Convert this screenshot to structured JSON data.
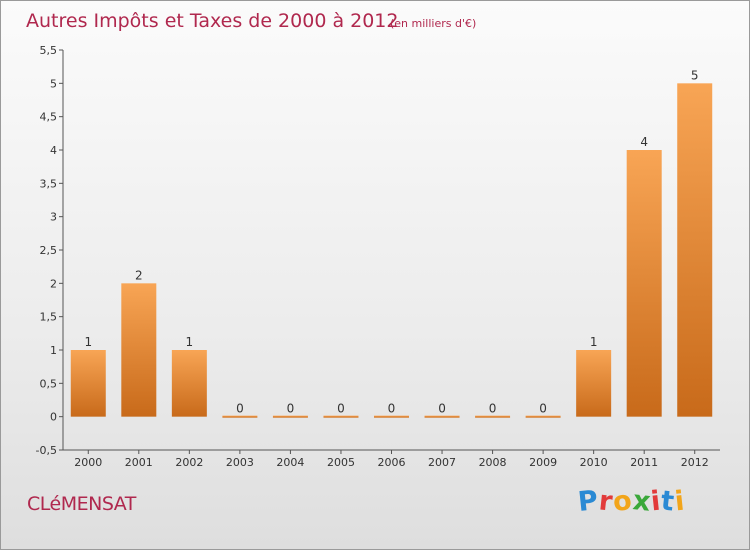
{
  "chart_data": {
    "type": "bar",
    "title": "Autres Impôts et Taxes de 2000 à 2012",
    "subtitle": "(en milliers d'€)",
    "categories": [
      "2000",
      "2001",
      "2002",
      "2003",
      "2004",
      "2005",
      "2006",
      "2007",
      "2008",
      "2009",
      "2010",
      "2011",
      "2012"
    ],
    "values": [
      1,
      2,
      1,
      0,
      0,
      0,
      0,
      0,
      0,
      0,
      1,
      4,
      5
    ],
    "data_labels": [
      "1",
      "2",
      "1",
      "0",
      "0",
      "0",
      "0",
      "0",
      "0",
      "0",
      "1",
      "4",
      "5"
    ],
    "ylim": [
      -0.5,
      5.5
    ],
    "yticks": [
      "-0,5",
      "0",
      "0,5",
      "1",
      "1,5",
      "2",
      "2,5",
      "3",
      "3,5",
      "4",
      "4,5",
      "5",
      "5,5"
    ],
    "ytick_values": [
      -0.5,
      0,
      0.5,
      1,
      1.5,
      2,
      2.5,
      3,
      3.5,
      4,
      4.5,
      5,
      5.5
    ],
    "grid": false,
    "colors": {
      "bar_light": "#f8a555",
      "bar_dark": "#c86a1a",
      "title": "#b0284e"
    }
  },
  "footer": {
    "city": "CLéMENSAT",
    "brand_letters": [
      "P",
      "r",
      "o",
      "x",
      "i",
      "t",
      "i"
    ],
    "brand_colors": [
      "#2a8ad4",
      "#e23a3a",
      "#f2a51a",
      "#3aa83a",
      "#e23a3a",
      "#2a8ad4",
      "#f2a51a"
    ]
  }
}
